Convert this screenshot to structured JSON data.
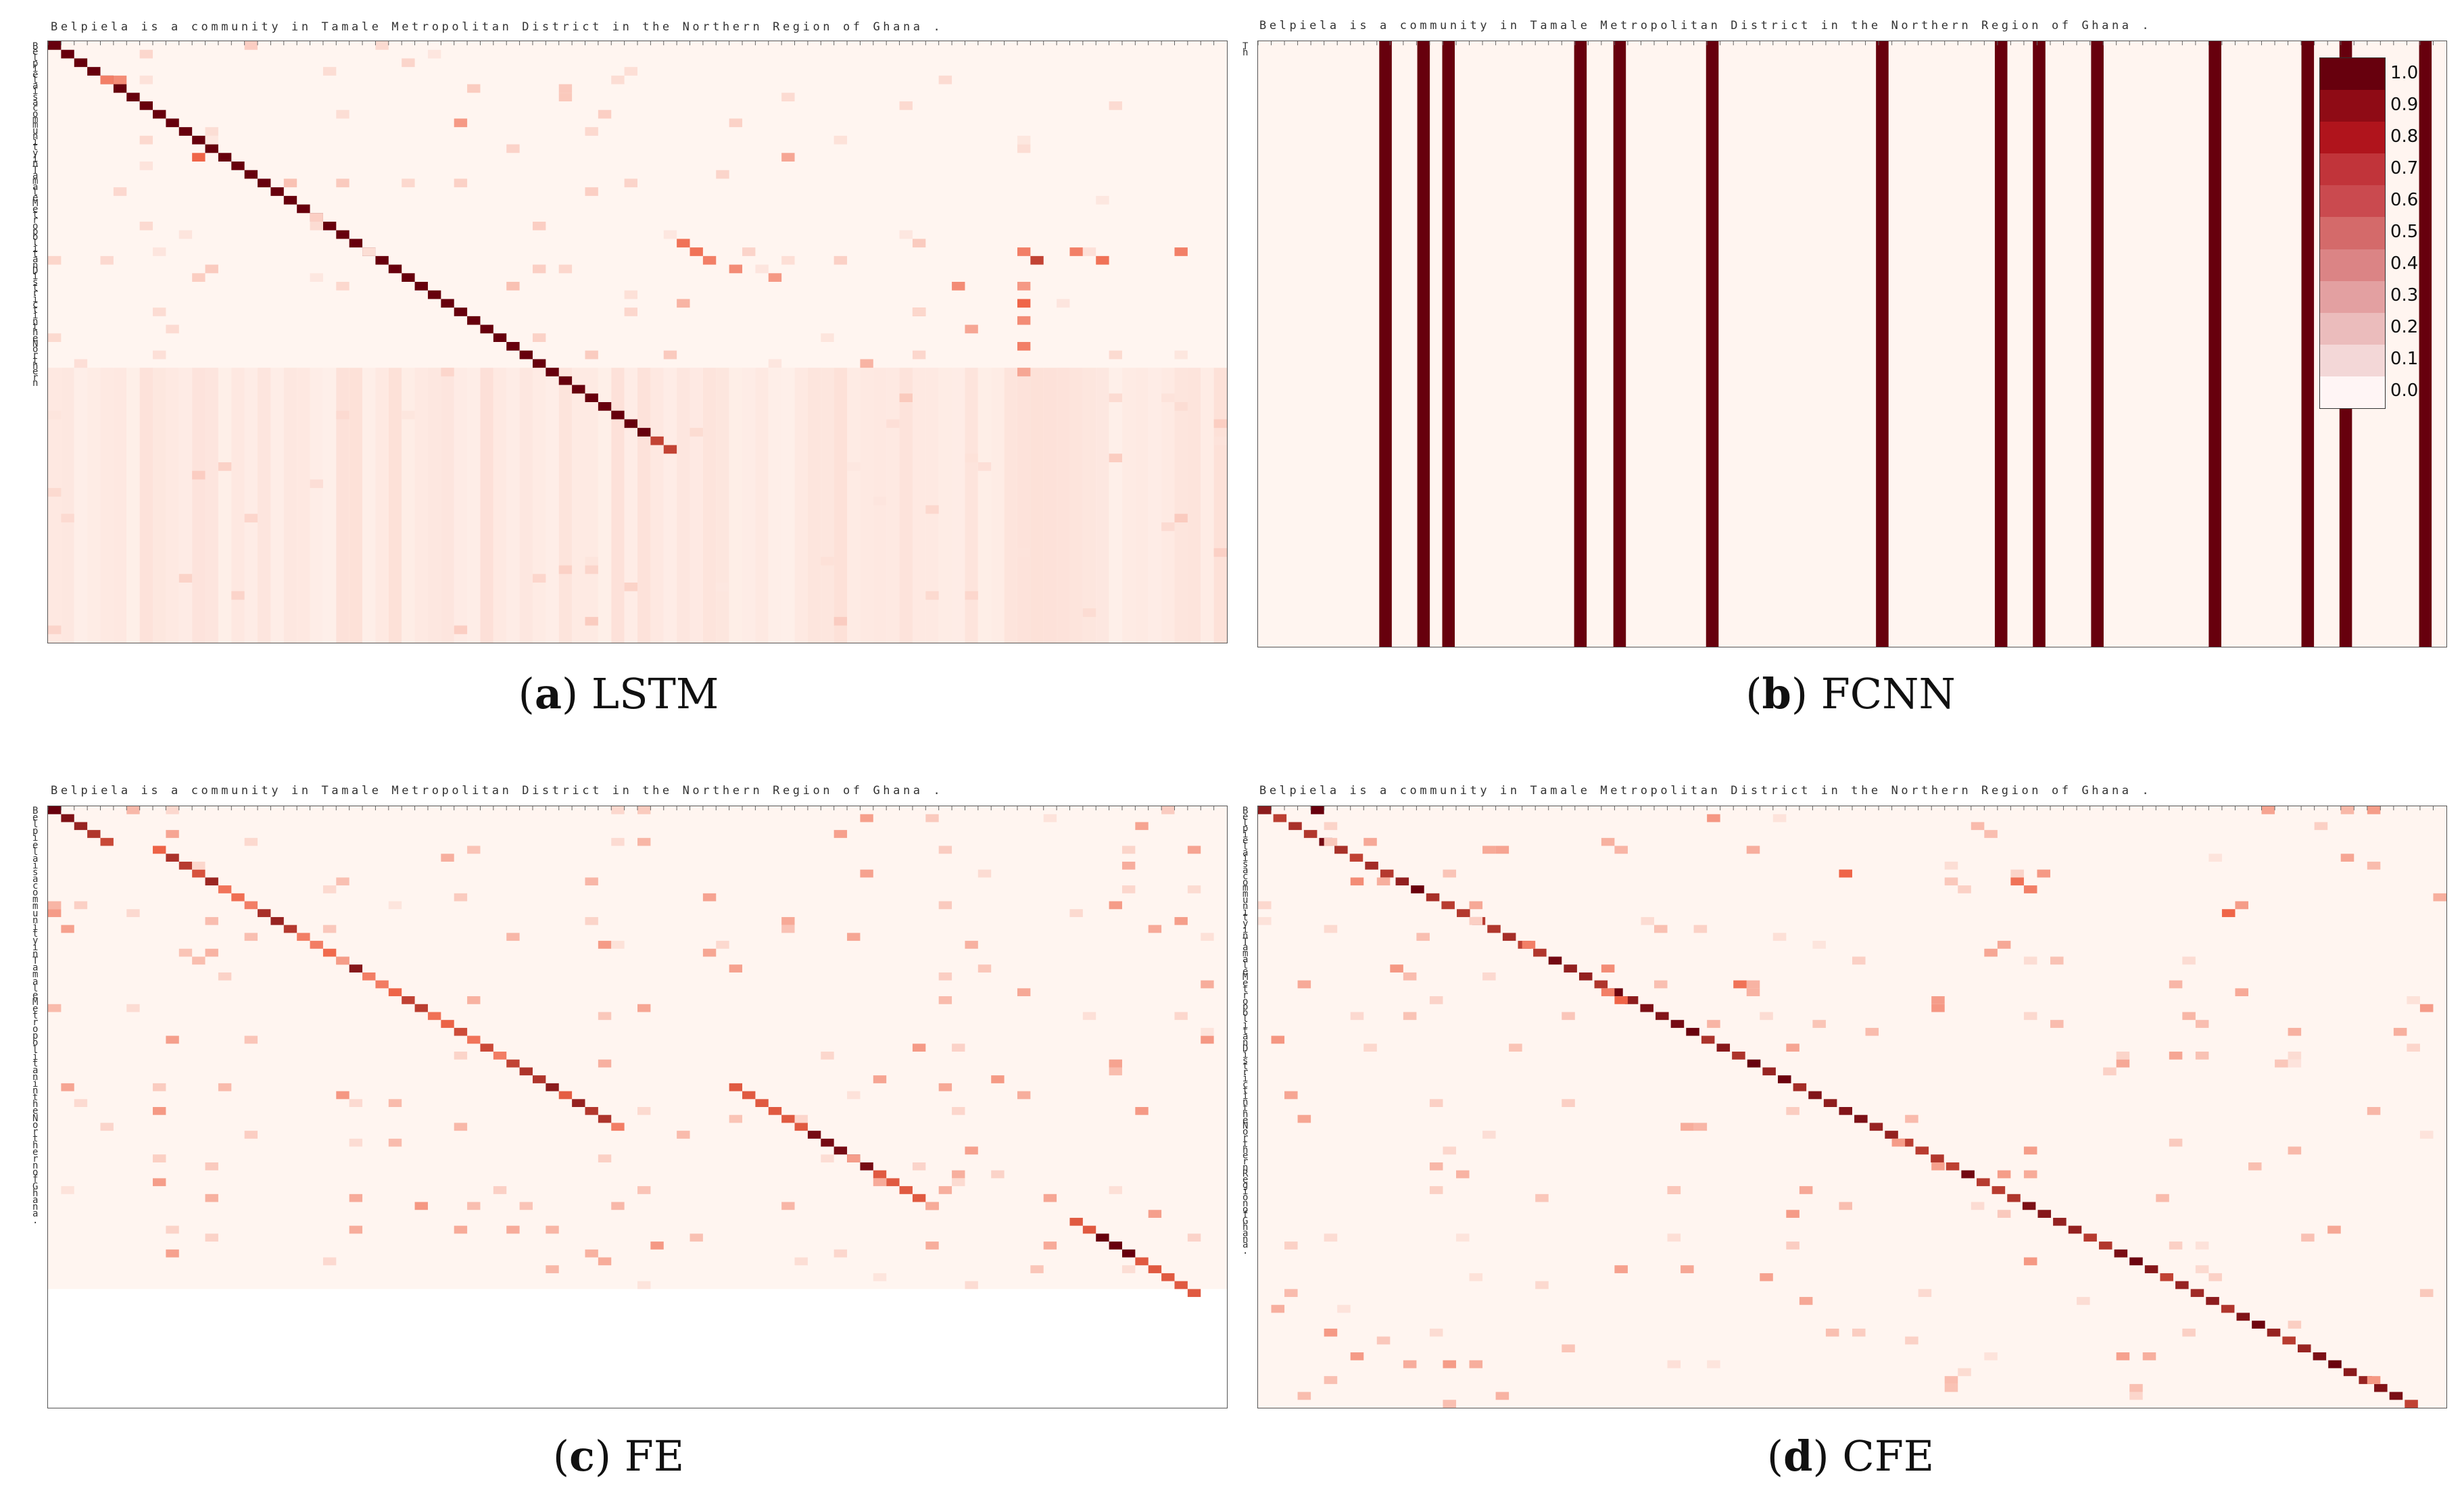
{
  "sentence": "Belpiela is a community in Tamale Metropolitan District in the Northern Region of Ghana .",
  "colors": {
    "low": "#fff5f0",
    "high": "#67000d"
  },
  "chart_data": [
    {
      "type": "heatmap",
      "label_letter": "a",
      "label_name": "LSTM",
      "x_labels": "Belpiela is a community in Tamale Metropolitan District in the Northern Region of Ghana .",
      "y_labels": [
        "B",
        "e",
        "l",
        "p",
        "i",
        "e",
        "l",
        "a",
        "i",
        "s",
        "a",
        "c",
        "o",
        "m",
        "m",
        "u",
        "n",
        "i",
        "t",
        "y",
        "i",
        "n",
        "T",
        "a",
        "m",
        "a",
        "l",
        "e",
        "M",
        "e",
        "t",
        "r",
        "o",
        "p",
        "o",
        "l",
        "i",
        "t",
        "a",
        "n",
        "D",
        "i",
        "s",
        "t",
        "r",
        "i",
        "c",
        "t",
        "i",
        "n",
        "t",
        "h",
        "e",
        "N",
        "o",
        "r",
        "t",
        "h",
        "e",
        "r",
        "n"
      ],
      "pattern": "diagonal-then-diffuse"
    },
    {
      "type": "heatmap",
      "label_letter": "b",
      "label_name": "FCNN",
      "x_labels": "Belpiela is a community in Tamale Metropolitan District in the Northern Region of Ghana .",
      "y_labels": [
        "T",
        "h"
      ],
      "pattern": "vertical-columns",
      "column_positions_fraction": [
        0.102,
        0.134,
        0.155,
        0.266,
        0.299,
        0.377,
        0.52,
        0.62,
        0.652,
        0.701,
        0.8,
        0.878,
        0.91,
        0.977
      ],
      "colorbar": {
        "ticks": [
          "1.0",
          "0.9",
          "0.8",
          "0.7",
          "0.6",
          "0.5",
          "0.4",
          "0.3",
          "0.2",
          "0.1",
          "0.0"
        ],
        "colors": [
          "#67000d",
          "#8f0b15",
          "#b0141c",
          "#c1343a",
          "#ca4a4f",
          "#d46a6a",
          "#db8485",
          "#e3a0a1",
          "#ebbcbc",
          "#f3d7d7",
          "#fff5f5"
        ]
      }
    },
    {
      "type": "heatmap",
      "label_letter": "c",
      "label_name": "FE",
      "x_labels": "Belpiela is a community in Tamale Metropolitan District in the Northern Region of Ghana .",
      "y_labels": [
        "B",
        "e",
        "l",
        "p",
        "i",
        "e",
        "l",
        "a",
        "i",
        "s",
        "a",
        "c",
        "o",
        "m",
        "m",
        "u",
        "n",
        "i",
        "t",
        "y",
        "i",
        "n",
        "T",
        "a",
        "m",
        "a",
        "l",
        "e",
        "M",
        "e",
        "t",
        "r",
        "o",
        "p",
        "o",
        "l",
        "i",
        "t",
        "a",
        "n",
        "i",
        "n",
        "t",
        "h",
        "e",
        "N",
        "o",
        "r",
        "t",
        "h",
        "e",
        "r",
        "n",
        "o",
        "f",
        "G",
        "h",
        "a",
        "n",
        "a",
        "."
      ],
      "pattern": "diagonal-segments"
    },
    {
      "type": "heatmap",
      "label_letter": "d",
      "label_name": "CFE",
      "x_labels": "Belpiela is a community in Tamale Metropolitan District in the Northern Region of Ghana .",
      "y_labels": [
        "B",
        "e",
        "l",
        "p",
        "i",
        "e",
        "l",
        "a",
        "i",
        "s",
        "a",
        "c",
        "o",
        "m",
        "m",
        "u",
        "n",
        "i",
        "t",
        "y",
        "i",
        "n",
        "T",
        "a",
        "m",
        "a",
        "l",
        "e",
        "M",
        "e",
        "t",
        "r",
        "o",
        "p",
        "o",
        "l",
        "i",
        "t",
        "a",
        "n",
        "D",
        "i",
        "s",
        "t",
        "r",
        "i",
        "c",
        "t",
        "i",
        "n",
        "t",
        "h",
        "e",
        "N",
        "o",
        "r",
        "t",
        "h",
        "e",
        "r",
        "n",
        "R",
        "e",
        "g",
        "i",
        "o",
        "n",
        "o",
        "f",
        "G",
        "h",
        "a",
        "n",
        "a",
        "."
      ],
      "pattern": "full-diagonal"
    }
  ]
}
